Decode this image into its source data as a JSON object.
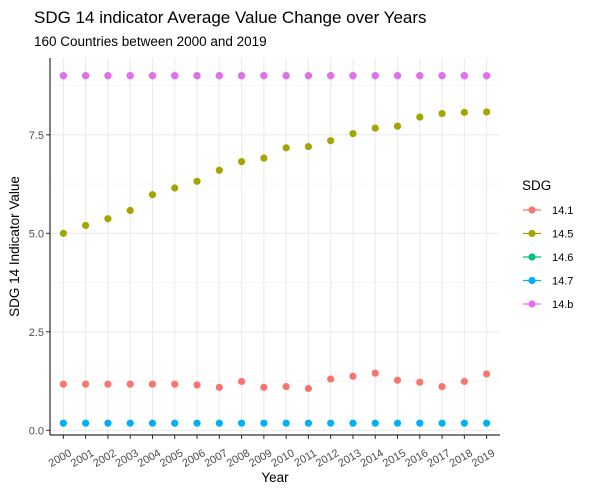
{
  "chart_data": {
    "type": "line",
    "title": "SDG 14 indicator Average Value Change over Years",
    "subtitle": "160 Countries between 2000 and 2019",
    "xlabel": "Year",
    "ylabel": "SDG 14 Indicator Value",
    "x": [
      "2000",
      "2001",
      "2002",
      "2003",
      "2004",
      "2005",
      "2006",
      "2007",
      "2008",
      "2009",
      "2010",
      "2011",
      "2012",
      "2013",
      "2014",
      "2015",
      "2016",
      "2017",
      "2018",
      "2019"
    ],
    "ylim": [
      -0.12,
      9.45
    ],
    "yticks": [
      0.0,
      2.5,
      5.0,
      7.5
    ],
    "ytick_labels": [
      "0.0",
      "2.5",
      "5.0",
      "7.5"
    ],
    "grid": true,
    "legend": {
      "title": "SDG",
      "position": "right"
    },
    "series": [
      {
        "name": "14.1",
        "color": "#F8766D",
        "values": [
          1.17,
          1.17,
          1.17,
          1.17,
          1.17,
          1.17,
          1.15,
          1.09,
          1.24,
          1.09,
          1.11,
          1.06,
          1.3,
          1.37,
          1.45,
          1.27,
          1.22,
          1.11,
          1.24,
          1.43
        ]
      },
      {
        "name": "14.5",
        "color": "#A3A500",
        "values": [
          5.0,
          5.2,
          5.37,
          5.58,
          5.98,
          6.15,
          6.32,
          6.6,
          6.82,
          6.91,
          7.17,
          7.2,
          7.35,
          7.53,
          7.67,
          7.72,
          7.95,
          8.04,
          8.07,
          8.08
        ]
      },
      {
        "name": "14.6",
        "color": "#00BF7D",
        "values": [
          9.0,
          9.0,
          9.0,
          9.0,
          9.0,
          9.0,
          9.0,
          9.0,
          9.0,
          9.0,
          9.0,
          9.0,
          9.0,
          9.0,
          9.0,
          9.0,
          9.0,
          9.0,
          9.0,
          9.0
        ]
      },
      {
        "name": "14.7",
        "color": "#00B0F6",
        "values": [
          0.18,
          0.18,
          0.18,
          0.18,
          0.18,
          0.18,
          0.18,
          0.18,
          0.18,
          0.18,
          0.18,
          0.18,
          0.18,
          0.18,
          0.18,
          0.18,
          0.18,
          0.18,
          0.18,
          0.18
        ]
      },
      {
        "name": "14.b",
        "color": "#E76BF3",
        "values": [
          9.0,
          9.0,
          9.0,
          9.0,
          9.0,
          9.0,
          9.0,
          9.0,
          9.0,
          9.0,
          9.0,
          9.0,
          9.0,
          9.0,
          9.0,
          9.0,
          9.0,
          9.0,
          9.0,
          9.0
        ]
      }
    ]
  }
}
